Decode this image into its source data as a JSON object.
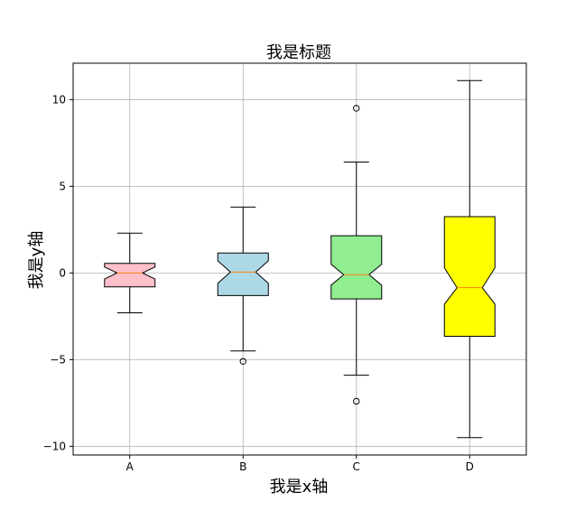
{
  "chart_data": {
    "type": "boxplot",
    "title": "我是标题",
    "xlabel": "我是x轴",
    "ylabel": "我是y轴",
    "ylim": [
      -10.5,
      12.1
    ],
    "yticks": [
      -10,
      -5,
      0,
      5,
      10
    ],
    "ytick_labels": [
      "−10",
      "−5",
      "0",
      "5",
      "10"
    ],
    "grid": true,
    "notched": true,
    "categories": [
      "A",
      "B",
      "C",
      "D"
    ],
    "boxes": [
      {
        "name": "A",
        "color": "#ffc0cb",
        "whisker_low": -2.3,
        "q1": -0.8,
        "median": 0.0,
        "q3": 0.55,
        "whisker_high": 2.3,
        "notch_low": -0.35,
        "notch_high": 0.35,
        "outliers": []
      },
      {
        "name": "B",
        "color": "#add8e6",
        "whisker_low": -4.5,
        "q1": -1.3,
        "median": 0.05,
        "q3": 1.15,
        "whisker_high": 3.8,
        "notch_low": -0.6,
        "notch_high": 0.7,
        "outliers": [
          -5.1
        ]
      },
      {
        "name": "C",
        "color": "#90ee90",
        "whisker_low": -5.9,
        "q1": -1.5,
        "median": -0.1,
        "q3": 2.15,
        "whisker_high": 6.4,
        "notch_low": -0.7,
        "notch_high": 0.5,
        "outliers": [
          9.5,
          -7.4
        ]
      },
      {
        "name": "D",
        "color": "#ffff00",
        "whisker_low": -9.5,
        "q1": -3.65,
        "median": -0.85,
        "q3": 3.25,
        "whisker_high": 11.1,
        "notch_low": -1.8,
        "notch_high": 0.3,
        "outliers": []
      }
    ],
    "median_color": "#ff7f0e"
  }
}
